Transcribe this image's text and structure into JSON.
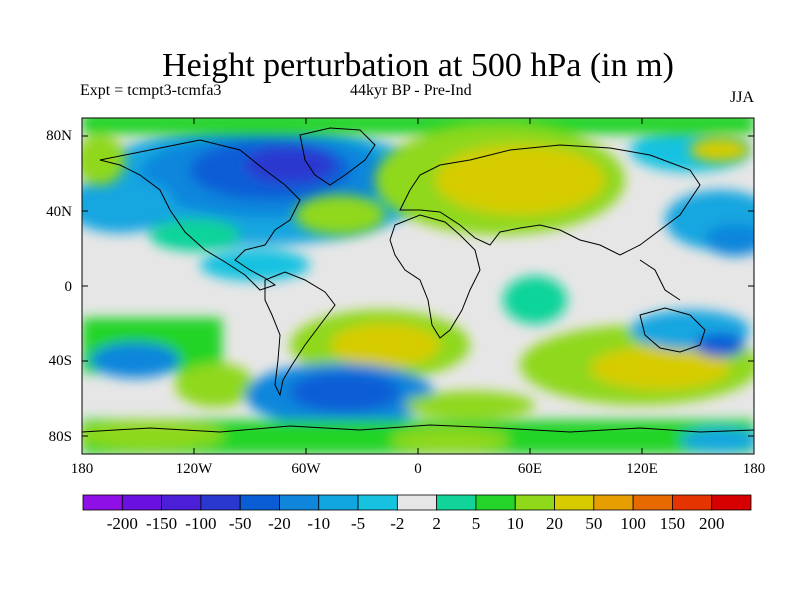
{
  "title": "Height perturbation at 500 hPa (in m)",
  "experiment": "Expt = tcmpt3-tcmfa3",
  "period": "44kyr BP - Pre-Ind",
  "season": "JJA",
  "map": {
    "lat_ticks": [
      "80N",
      "40N",
      "0",
      "40S",
      "80S"
    ],
    "lon_ticks": [
      "180",
      "120W",
      "60W",
      "0",
      "60E",
      "120E",
      "180"
    ],
    "background_color": "#e6e6e6",
    "coastline_color": "#000000"
  },
  "colorbar": {
    "labels": [
      "-200",
      "-150",
      "-100",
      "-50",
      "-20",
      "-10",
      "-5",
      "-2",
      "2",
      "5",
      "10",
      "20",
      "50",
      "100",
      "150",
      "200"
    ],
    "colors": [
      "#8f10e6",
      "#6a10e0",
      "#4b1fd8",
      "#2b38d0",
      "#0b5dd6",
      "#0f86dc",
      "#12a6e0",
      "#16c2e0",
      "#e6e6e6",
      "#10d49a",
      "#24d428",
      "#8fd81a",
      "#d6cc00",
      "#e69e00",
      "#e66a00",
      "#e63400",
      "#d60000"
    ]
  },
  "field": {
    "blobs": [
      {
        "value": -20,
        "region": "Greenland / Baffin"
      },
      {
        "value": -10,
        "region": "North Atlantic"
      },
      {
        "value": -10,
        "region": "North Pacific"
      },
      {
        "value": -20,
        "region": "South Atlantic"
      },
      {
        "value": 20,
        "region": "Eurasia"
      },
      {
        "value": 20,
        "region": "South Indian Ocean / Australia"
      },
      {
        "value": 10,
        "region": "South Pacific"
      },
      {
        "value": 10,
        "region": "South Atlantic midlatitudes"
      },
      {
        "value": 5,
        "region": "Southern Ocean"
      }
    ]
  }
}
